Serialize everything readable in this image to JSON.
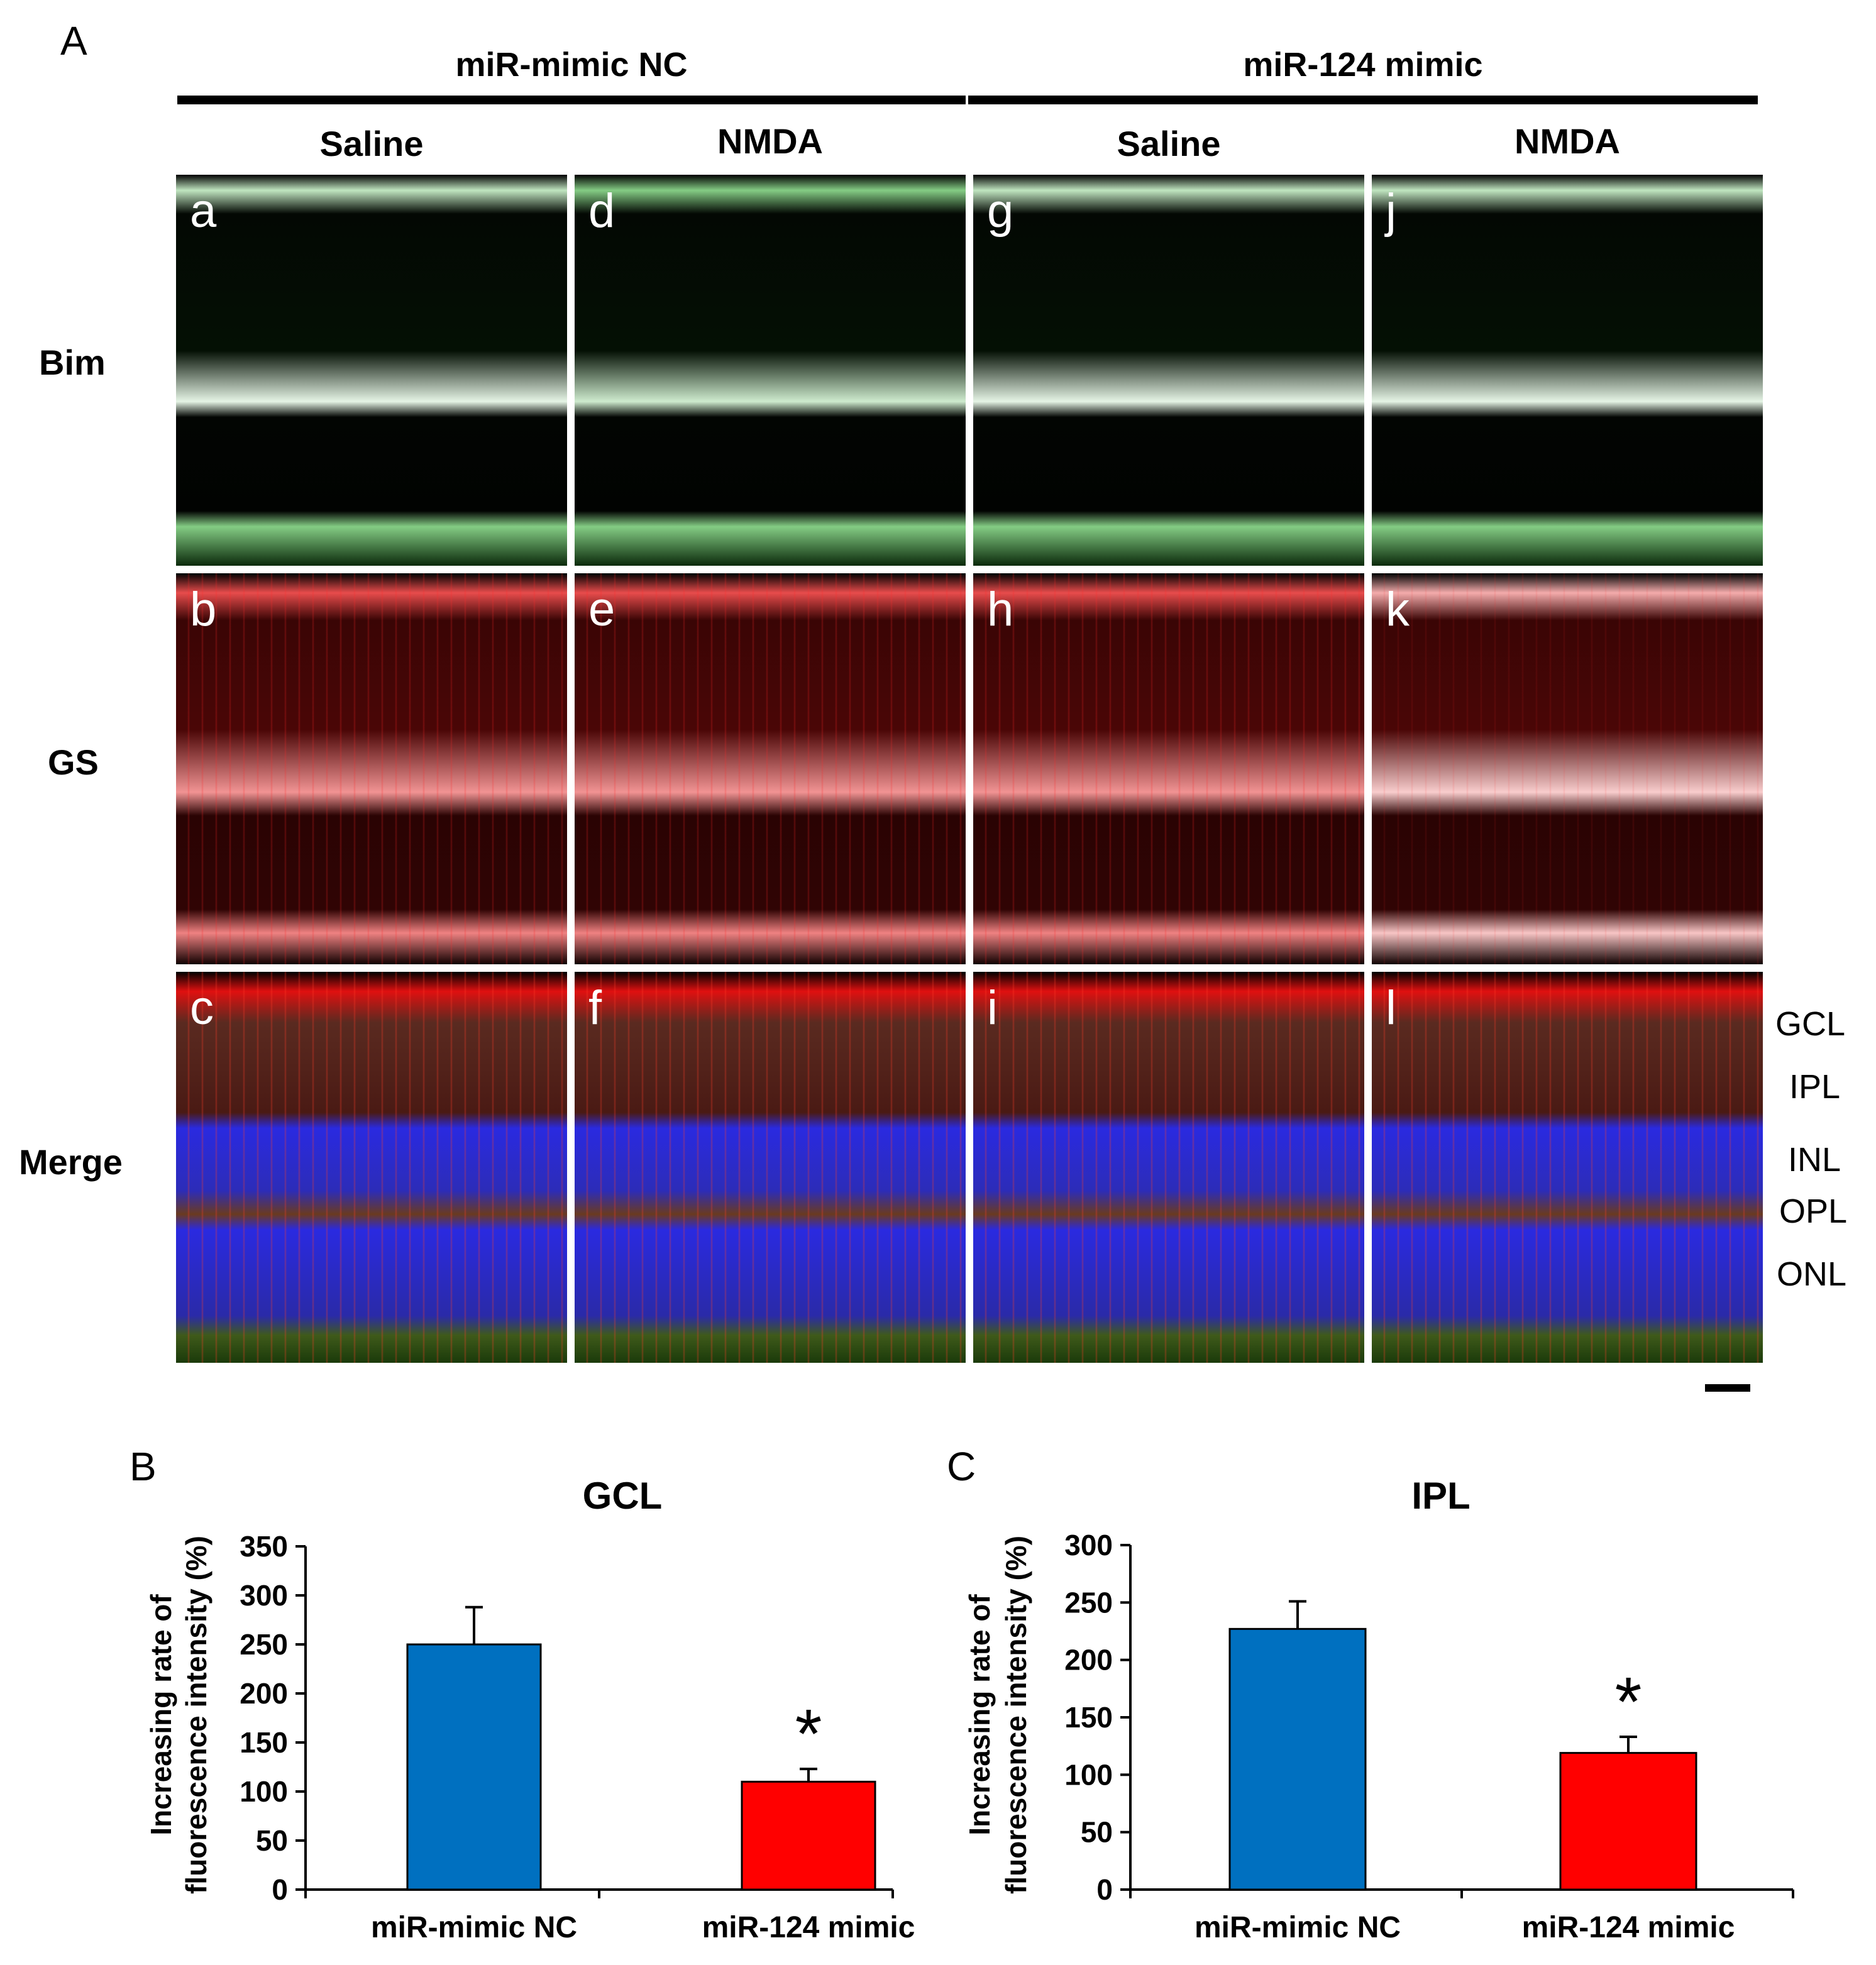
{
  "panel_letters": {
    "a": "A",
    "b": "B",
    "c": "C"
  },
  "panel_a": {
    "groups": [
      "miR-mimic NC",
      "miR-124 mimic"
    ],
    "columns": [
      "Saline",
      "NMDA",
      "Saline",
      "NMDA"
    ],
    "rows": [
      {
        "label": "Bim",
        "letters": [
          "a",
          "d",
          "g",
          "j"
        ]
      },
      {
        "label": "GS",
        "letters": [
          "b",
          "e",
          "h",
          "k"
        ]
      },
      {
        "label": "Merge",
        "letters": [
          "c",
          "f",
          "i",
          "l"
        ]
      }
    ],
    "layers": [
      "GCL",
      "IPL",
      "INL",
      "OPL",
      "ONL"
    ],
    "colors": {
      "bim": "#1fa31f",
      "gs": "#e01010",
      "dapi": "#2a2ae0"
    }
  },
  "chart_data": [
    {
      "type": "bar",
      "title": "GCL",
      "categories": [
        "miR-mimic NC",
        "miR-124 mimic"
      ],
      "values": [
        250,
        110
      ],
      "errors": [
        38,
        13
      ],
      "colors": [
        "#0070c0",
        "#ff0000"
      ],
      "ylabel": [
        "Increasing rate of",
        "fluorescence intensity (%)"
      ],
      "ylim": [
        0,
        350
      ],
      "yticks": [
        0,
        50,
        100,
        150,
        200,
        250,
        300,
        350
      ],
      "annotation": "*"
    },
    {
      "type": "bar",
      "title": "IPL",
      "categories": [
        "miR-mimic NC",
        "miR-124 mimic"
      ],
      "values": [
        227,
        119
      ],
      "errors": [
        24,
        14
      ],
      "colors": [
        "#0070c0",
        "#ff0000"
      ],
      "ylabel": [
        "Increasing rate of",
        "fluorescence intensity (%)"
      ],
      "ylim": [
        0,
        300
      ],
      "yticks": [
        0,
        50,
        100,
        150,
        200,
        250,
        300
      ],
      "annotation": "*"
    }
  ]
}
